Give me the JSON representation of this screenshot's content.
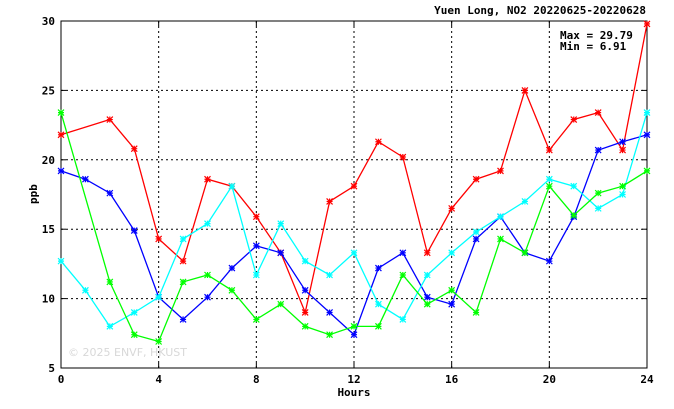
{
  "chart_data": {
    "type": "line",
    "title": "Yuen Long, NO2 20220625-20220628",
    "xlabel": "Hours",
    "ylabel": "ppb",
    "xlim": [
      0,
      24
    ],
    "ylim": [
      5,
      30
    ],
    "x_ticks": [
      "0",
      "4",
      "8",
      "12",
      "16",
      "20",
      "24"
    ],
    "y_ticks": [
      "5",
      "10",
      "15",
      "20",
      "25",
      "30"
    ],
    "grid": true,
    "stats": {
      "max_label": "Max = 29.79",
      "min_label": "Min =  6.91"
    },
    "watermark": "© 2025 ENVF, HKUST",
    "series": [
      {
        "color": "#ff0000",
        "x": [
          0,
          2,
          3,
          4,
          5,
          6,
          7,
          8,
          9,
          10,
          11,
          12,
          13,
          14,
          15,
          16,
          17,
          18,
          19,
          20,
          21,
          22,
          23,
          24
        ],
        "y": [
          21.8,
          22.9,
          20.8,
          14.3,
          12.7,
          18.6,
          18.1,
          15.9,
          13.3,
          9.0,
          17.0,
          18.1,
          21.3,
          20.2,
          13.3,
          16.5,
          18.6,
          19.2,
          25.0,
          20.7,
          22.9,
          23.4,
          20.7,
          29.79
        ]
      },
      {
        "color": "#0000ff",
        "x": [
          0,
          1,
          2,
          3,
          4,
          5,
          6,
          7,
          8,
          9,
          10,
          11,
          12,
          13,
          14,
          15,
          16,
          17,
          18,
          19,
          20,
          21,
          22,
          23,
          24
        ],
        "y": [
          19.2,
          18.6,
          17.6,
          14.9,
          10.1,
          8.5,
          10.1,
          12.2,
          13.8,
          13.3,
          10.6,
          9.0,
          7.4,
          12.2,
          13.3,
          10.1,
          9.6,
          14.3,
          15.9,
          13.3,
          12.7,
          15.9,
          20.7,
          21.3,
          21.8
        ]
      },
      {
        "color": "#00ffff",
        "x": [
          0,
          1,
          2,
          3,
          4,
          5,
          6,
          7,
          8,
          9,
          10,
          11,
          12,
          13,
          14,
          15,
          16,
          17,
          18,
          19,
          20,
          21,
          22,
          23,
          24
        ],
        "y": [
          12.7,
          10.6,
          8.0,
          9.0,
          10.1,
          14.3,
          15.4,
          18.1,
          11.7,
          15.4,
          12.7,
          11.7,
          13.3,
          9.6,
          8.5,
          11.7,
          13.3,
          14.8,
          15.9,
          17.0,
          18.6,
          18.1,
          16.5,
          17.5,
          23.4
        ]
      },
      {
        "color": "#00ff00",
        "x": [
          0,
          2,
          3,
          4,
          5,
          6,
          7,
          8,
          9,
          10,
          11,
          12,
          13,
          14,
          15,
          16,
          17,
          18,
          19,
          20,
          21,
          22,
          23,
          24
        ],
        "y": [
          23.4,
          11.2,
          7.4,
          6.91,
          11.2,
          11.7,
          10.6,
          8.5,
          9.6,
          8.0,
          7.4,
          8.0,
          8.0,
          11.7,
          9.6,
          10.6,
          9.0,
          14.3,
          13.3,
          18.1,
          16.0,
          17.6,
          18.1,
          19.2
        ]
      }
    ]
  }
}
